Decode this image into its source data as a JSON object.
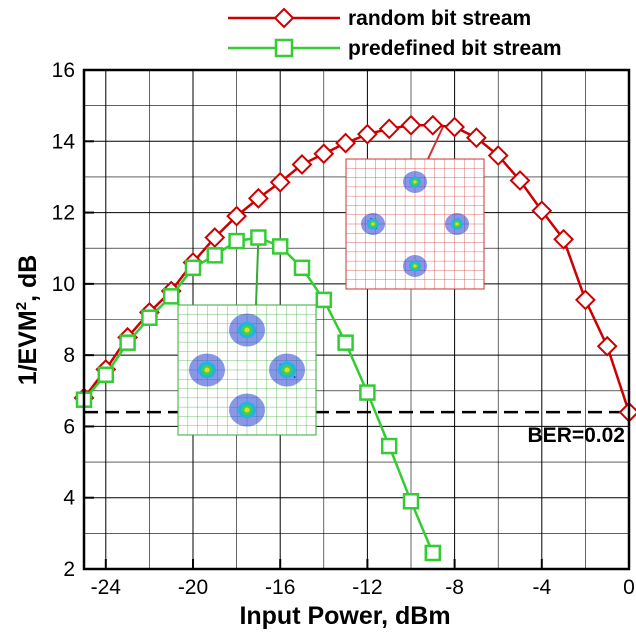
{
  "chart_data": {
    "type": "line",
    "xlabel": "Input Power, dBm",
    "ylabel_main": "1/EVM",
    "ylabel_sup": "2",
    "ylabel_unit": ", dB",
    "xlim": [
      -25,
      0
    ],
    "ylim": [
      2,
      16
    ],
    "x_ticks": [
      -24,
      -20,
      -16,
      -12,
      -8,
      -4,
      0
    ],
    "x_tick_labels": [
      "-24",
      "-20",
      "-16",
      "-12",
      "-8",
      "-4",
      "0"
    ],
    "y_ticks": [
      2,
      4,
      6,
      8,
      10,
      12,
      14,
      16
    ],
    "y_tick_labels": [
      "2",
      "4",
      "6",
      "8",
      "10",
      "12",
      "14",
      "16"
    ],
    "grid": true,
    "legend_position": "top-right, outside plot",
    "series": [
      {
        "name": "random bit stream",
        "color": "#cc0000",
        "marker": "diamond",
        "x": [
          -25,
          -24,
          -23,
          -22,
          -21,
          -20,
          -19,
          -18,
          -17,
          -16,
          -15,
          -14,
          -13,
          -12,
          -11,
          -10,
          -9,
          -8,
          -7,
          -6,
          -5,
          -4,
          -3,
          -2,
          -1,
          0
        ],
        "y": [
          6.8,
          7.6,
          8.5,
          9.2,
          9.8,
          10.6,
          11.3,
          11.9,
          12.4,
          12.85,
          13.35,
          13.65,
          13.95,
          14.2,
          14.35,
          14.45,
          14.45,
          14.4,
          14.1,
          13.6,
          12.9,
          12.05,
          11.25,
          9.55,
          8.25,
          6.4
        ]
      },
      {
        "name": "predefined bit stream",
        "color": "#33cc33",
        "marker": "square",
        "x": [
          -25,
          -24,
          -23,
          -22,
          -21,
          -20,
          -19,
          -18,
          -17,
          -16,
          -15,
          -14,
          -13,
          -12,
          -11,
          -10,
          -9
        ],
        "y": [
          6.75,
          7.45,
          8.35,
          9.05,
          9.65,
          10.45,
          10.8,
          11.2,
          11.3,
          11.05,
          10.45,
          9.55,
          8.35,
          6.95,
          5.45,
          3.9,
          2.45
        ]
      }
    ],
    "reference_line": {
      "y": 6.4,
      "label": "BER=0.02",
      "style": "dashed",
      "color": "#000000"
    },
    "insets": [
      {
        "name": "constellation-random",
        "description_color": "#cc3333",
        "anchor_point": [
          -8.5,
          14.45
        ]
      },
      {
        "name": "constellation-predefined",
        "description_color": "#33aa33",
        "anchor_point": [
          -17,
          11.3
        ]
      }
    ]
  }
}
